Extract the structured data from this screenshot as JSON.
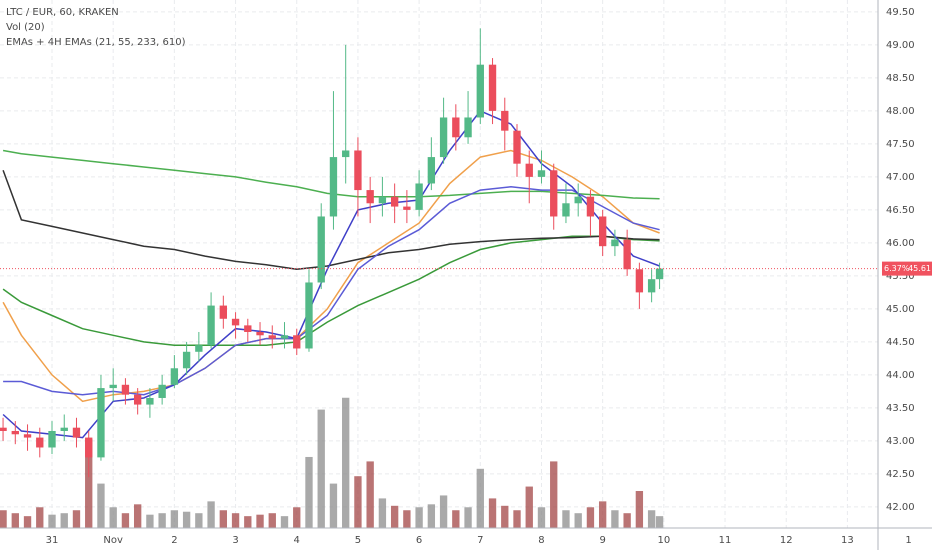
{
  "chart_data": {
    "type": "candlestick",
    "title": "LTC / EUR, 60, KRAKEN",
    "volume_label": "Vol (20)",
    "indicator_label": "EMAs + 4H EMAs (21, 55, 233, 610)",
    "x": [
      -0.8,
      -0.6,
      -0.4,
      -0.2,
      0,
      0.2,
      0.4,
      0.6,
      0.8,
      1,
      1.2,
      1.4,
      1.6,
      1.8,
      2,
      2.2,
      2.4,
      2.6,
      2.8,
      3,
      3.2,
      3.4,
      3.6,
      3.8,
      4,
      4.2,
      4.4,
      4.6,
      4.8,
      5,
      5.2,
      5.4,
      5.6,
      5.8,
      6,
      6.2,
      6.4,
      6.6,
      6.8,
      7,
      7.2,
      7.4,
      7.6,
      7.8,
      8,
      8.2,
      8.4,
      8.6,
      8.8,
      9,
      9.2,
      9.4,
      9.6,
      9.8,
      9.93
    ],
    "open": [
      43.2,
      43.15,
      43.1,
      43.05,
      42.9,
      43.15,
      43.2,
      43.05,
      42.75,
      43.8,
      43.85,
      43.7,
      43.55,
      43.65,
      43.85,
      44.1,
      44.35,
      44.45,
      45.05,
      44.85,
      44.75,
      44.65,
      44.6,
      44.55,
      44.6,
      44.4,
      45.4,
      46.4,
      47.3,
      47.4,
      46.8,
      46.6,
      46.7,
      46.55,
      46.5,
      46.9,
      47.3,
      47.9,
      47.6,
      47.9,
      48.7,
      48.0,
      47.7,
      47.2,
      47.0,
      47.1,
      46.4,
      46.6,
      46.7,
      46.4,
      45.95,
      46.05,
      45.6,
      45.25,
      45.45
    ],
    "high": [
      43.35,
      43.3,
      43.25,
      43.2,
      43.3,
      43.4,
      43.35,
      43.15,
      44.0,
      44.1,
      43.95,
      43.8,
      43.8,
      44.0,
      44.3,
      44.5,
      44.65,
      45.25,
      45.2,
      44.95,
      44.85,
      44.8,
      44.75,
      44.8,
      44.7,
      45.6,
      46.6,
      48.3,
      49.0,
      47.6,
      47.0,
      47.0,
      46.9,
      46.8,
      47.1,
      47.6,
      48.2,
      48.1,
      48.3,
      49.25,
      48.8,
      48.2,
      47.8,
      47.4,
      47.4,
      47.2,
      46.9,
      46.9,
      46.8,
      46.5,
      46.2,
      46.2,
      45.7,
      45.6,
      45.7
    ],
    "low": [
      43.0,
      42.95,
      42.85,
      42.75,
      42.8,
      43.0,
      42.9,
      42.45,
      42.7,
      43.6,
      43.55,
      43.4,
      43.35,
      43.55,
      43.8,
      44.0,
      44.2,
      44.4,
      44.7,
      44.55,
      44.5,
      44.45,
      44.4,
      44.4,
      44.3,
      44.35,
      45.3,
      46.2,
      46.9,
      46.4,
      46.3,
      46.4,
      46.3,
      46.3,
      46.4,
      46.8,
      47.2,
      47.4,
      47.5,
      47.8,
      47.8,
      47.4,
      47.0,
      46.6,
      46.9,
      46.2,
      46.3,
      46.4,
      46.1,
      45.8,
      45.8,
      45.5,
      45.0,
      45.1,
      45.3
    ],
    "close": [
      43.15,
      43.1,
      43.05,
      42.9,
      43.15,
      43.2,
      43.05,
      42.75,
      43.8,
      43.85,
      43.7,
      43.55,
      43.65,
      43.85,
      44.1,
      44.35,
      44.45,
      45.05,
      44.85,
      44.75,
      44.65,
      44.6,
      44.55,
      44.6,
      44.4,
      45.4,
      46.4,
      47.3,
      47.4,
      46.8,
      46.6,
      46.7,
      46.55,
      46.5,
      46.9,
      47.3,
      47.9,
      47.6,
      47.9,
      48.7,
      48.0,
      47.7,
      47.2,
      47.0,
      47.1,
      46.4,
      46.6,
      46.7,
      46.4,
      45.95,
      46.05,
      45.6,
      45.25,
      45.45,
      45.61
    ],
    "up_color": "#53b987",
    "down_color": "#eb4d5c",
    "volume": [
      12,
      10,
      8,
      14,
      9,
      10,
      12,
      60,
      30,
      14,
      10,
      16,
      9,
      10,
      12,
      11,
      10,
      18,
      12,
      10,
      8,
      9,
      10,
      8,
      14,
      48,
      80,
      30,
      88,
      35,
      45,
      20,
      15,
      12,
      14,
      16,
      22,
      12,
      14,
      40,
      20,
      15,
      12,
      28,
      14,
      45,
      12,
      10,
      14,
      18,
      12,
      10,
      25,
      12,
      8
    ],
    "volume_up_color": "#8c8c8c",
    "volume_down_color": "#a34646",
    "vlim": [
      0,
      100
    ],
    "lines": [
      {
        "color": "#f0a04b",
        "x": [
          -0.8,
          -0.5,
          0,
          0.5,
          1,
          1.5,
          2,
          2.5,
          3,
          3.5,
          4,
          4.5,
          5,
          5.5,
          6,
          6.5,
          7,
          7.5,
          8,
          8.5,
          9,
          9.5,
          9.93
        ],
        "values": [
          45.1,
          44.6,
          44.0,
          43.6,
          43.7,
          43.75,
          43.85,
          44.1,
          44.45,
          44.55,
          44.55,
          45.0,
          45.7,
          46.0,
          46.3,
          46.9,
          47.3,
          47.4,
          47.25,
          47.0,
          46.7,
          46.3,
          46.15
        ]
      },
      {
        "color": "#3a9a3a",
        "x": [
          -0.8,
          -0.5,
          0,
          0.5,
          1,
          1.5,
          2,
          2.5,
          3,
          3.5,
          4,
          4.5,
          5,
          5.5,
          6,
          6.5,
          7,
          7.5,
          8,
          8.5,
          9,
          9.5,
          9.93
        ],
        "values": [
          45.3,
          45.1,
          44.9,
          44.7,
          44.6,
          44.5,
          44.45,
          44.45,
          44.45,
          44.45,
          44.5,
          44.8,
          45.05,
          45.25,
          45.45,
          45.7,
          45.9,
          46.0,
          46.05,
          46.1,
          46.1,
          46.05,
          46.03
        ]
      },
      {
        "color": "#4caf50",
        "x": [
          -0.8,
          -0.5,
          0,
          0.5,
          1,
          1.5,
          2,
          2.5,
          3,
          3.5,
          4,
          4.5,
          5,
          5.5,
          6,
          6.5,
          7,
          7.5,
          8,
          8.5,
          9,
          9.5,
          9.93
        ],
        "values": [
          47.4,
          47.35,
          47.3,
          47.25,
          47.2,
          47.15,
          47.1,
          47.05,
          47.0,
          46.92,
          46.85,
          46.75,
          46.7,
          46.7,
          46.7,
          46.72,
          46.75,
          46.78,
          46.78,
          46.75,
          46.72,
          46.68,
          46.67
        ]
      },
      {
        "color": "#333333",
        "x": [
          -0.8,
          -0.5,
          0,
          0.5,
          1,
          1.5,
          2,
          2.5,
          3,
          3.5,
          4,
          4.5,
          5,
          5.5,
          6,
          6.5,
          7,
          7.5,
          8,
          8.5,
          9,
          9.5,
          9.93
        ],
        "values": [
          47.1,
          46.35,
          46.25,
          46.15,
          46.05,
          45.95,
          45.9,
          45.8,
          45.72,
          45.67,
          45.6,
          45.65,
          45.75,
          45.85,
          45.9,
          45.98,
          46.02,
          46.05,
          46.07,
          46.08,
          46.1,
          46.06,
          46.05
        ]
      },
      {
        "color": "#5b5bd6",
        "x": [
          -0.8,
          -0.5,
          0,
          0.5,
          1,
          1.5,
          2,
          2.5,
          3,
          3.5,
          4,
          4.5,
          5,
          5.5,
          6,
          6.5,
          7,
          7.5,
          8,
          8.5,
          9,
          9.5,
          9.93
        ],
        "values": [
          43.9,
          43.9,
          43.75,
          43.7,
          43.75,
          43.7,
          43.85,
          44.1,
          44.45,
          44.55,
          44.55,
          44.9,
          45.6,
          45.95,
          46.2,
          46.6,
          46.8,
          46.85,
          46.8,
          46.8,
          46.55,
          46.3,
          46.2
        ]
      },
      {
        "color": "#3f3fc8",
        "x": [
          -0.8,
          -0.5,
          0,
          0.5,
          1,
          1.5,
          2,
          2.5,
          3,
          3.5,
          4,
          4.5,
          5,
          5.5,
          6,
          6.5,
          7,
          7.5,
          8,
          8.5,
          9,
          9.5,
          9.93
        ],
        "values": [
          43.4,
          43.15,
          43.1,
          43.05,
          43.6,
          43.65,
          43.85,
          44.3,
          44.7,
          44.65,
          44.55,
          45.6,
          46.5,
          46.6,
          46.65,
          47.4,
          48.0,
          47.8,
          47.2,
          46.85,
          46.3,
          45.8,
          45.65
        ]
      }
    ],
    "last_price": 45.61,
    "last_change_label": "6.37%",
    "last_color": "#f0525f",
    "xlim": [
      -0.85,
      13.5
    ],
    "xticks": [
      {
        "value": 0,
        "label": "31"
      },
      {
        "value": 1,
        "label": "Nov"
      },
      2,
      3,
      4,
      5,
      6,
      7,
      8,
      9,
      10,
      11,
      12,
      13,
      {
        "value": 14,
        "label": "1"
      }
    ],
    "ylim": [
      41.68,
      49.68
    ],
    "yticks": [
      {
        "value": 49.5,
        "label": "49.50"
      },
      {
        "value": 49,
        "label": "49.00"
      },
      {
        "value": 48.5,
        "label": "48.50"
      },
      {
        "value": 48,
        "label": "48.00"
      },
      {
        "value": 47.5,
        "label": "47.50"
      },
      {
        "value": 47,
        "label": "47.00"
      },
      {
        "value": 46.5,
        "label": "46.50"
      },
      {
        "value": 46,
        "label": "46.00"
      },
      {
        "value": 45.5,
        "label": "45.50"
      },
      {
        "value": 45,
        "label": "45.00"
      },
      {
        "value": 44.5,
        "label": "44.50"
      },
      {
        "value": 44,
        "label": "44.00"
      },
      {
        "value": 43.5,
        "label": "43.50"
      },
      {
        "value": 43,
        "label": "43.00"
      },
      {
        "value": 42.5,
        "label": "42.50"
      },
      {
        "value": 42,
        "label": "42.00"
      }
    ],
    "grid": true
  }
}
